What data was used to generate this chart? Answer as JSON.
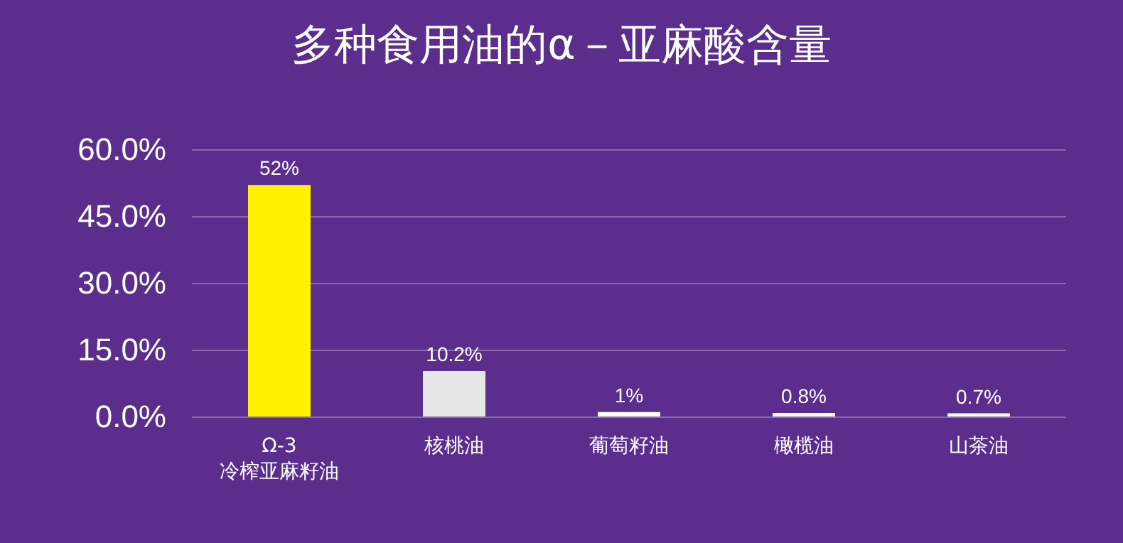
{
  "chart_data": {
    "type": "bar",
    "title": "多种食用油的α－亚麻酸含量",
    "categories": [
      "Ω-3\n冷榨亚麻籽油",
      "核桃油",
      "葡萄籽油",
      "橄榄油",
      "山茶油"
    ],
    "values": [
      52,
      10.2,
      1,
      0.8,
      0.7
    ],
    "colors": [
      "#fff200",
      "#e6e6e6",
      "#ffffff",
      "#ffffff",
      "#ffffff"
    ],
    "value_labels": [
      "52%",
      "10.2%",
      "1%",
      "0.8%",
      "0.7%"
    ],
    "ylim": [
      0,
      60
    ],
    "yticks": [
      {
        "value": 0,
        "label": "0.0%"
      },
      {
        "value": 15,
        "label": "15.0%"
      },
      {
        "value": 30,
        "label": "30.0%"
      },
      {
        "value": 45,
        "label": "45.0%"
      },
      {
        "value": 60,
        "label": "60.0%"
      }
    ],
    "grid": "y"
  }
}
